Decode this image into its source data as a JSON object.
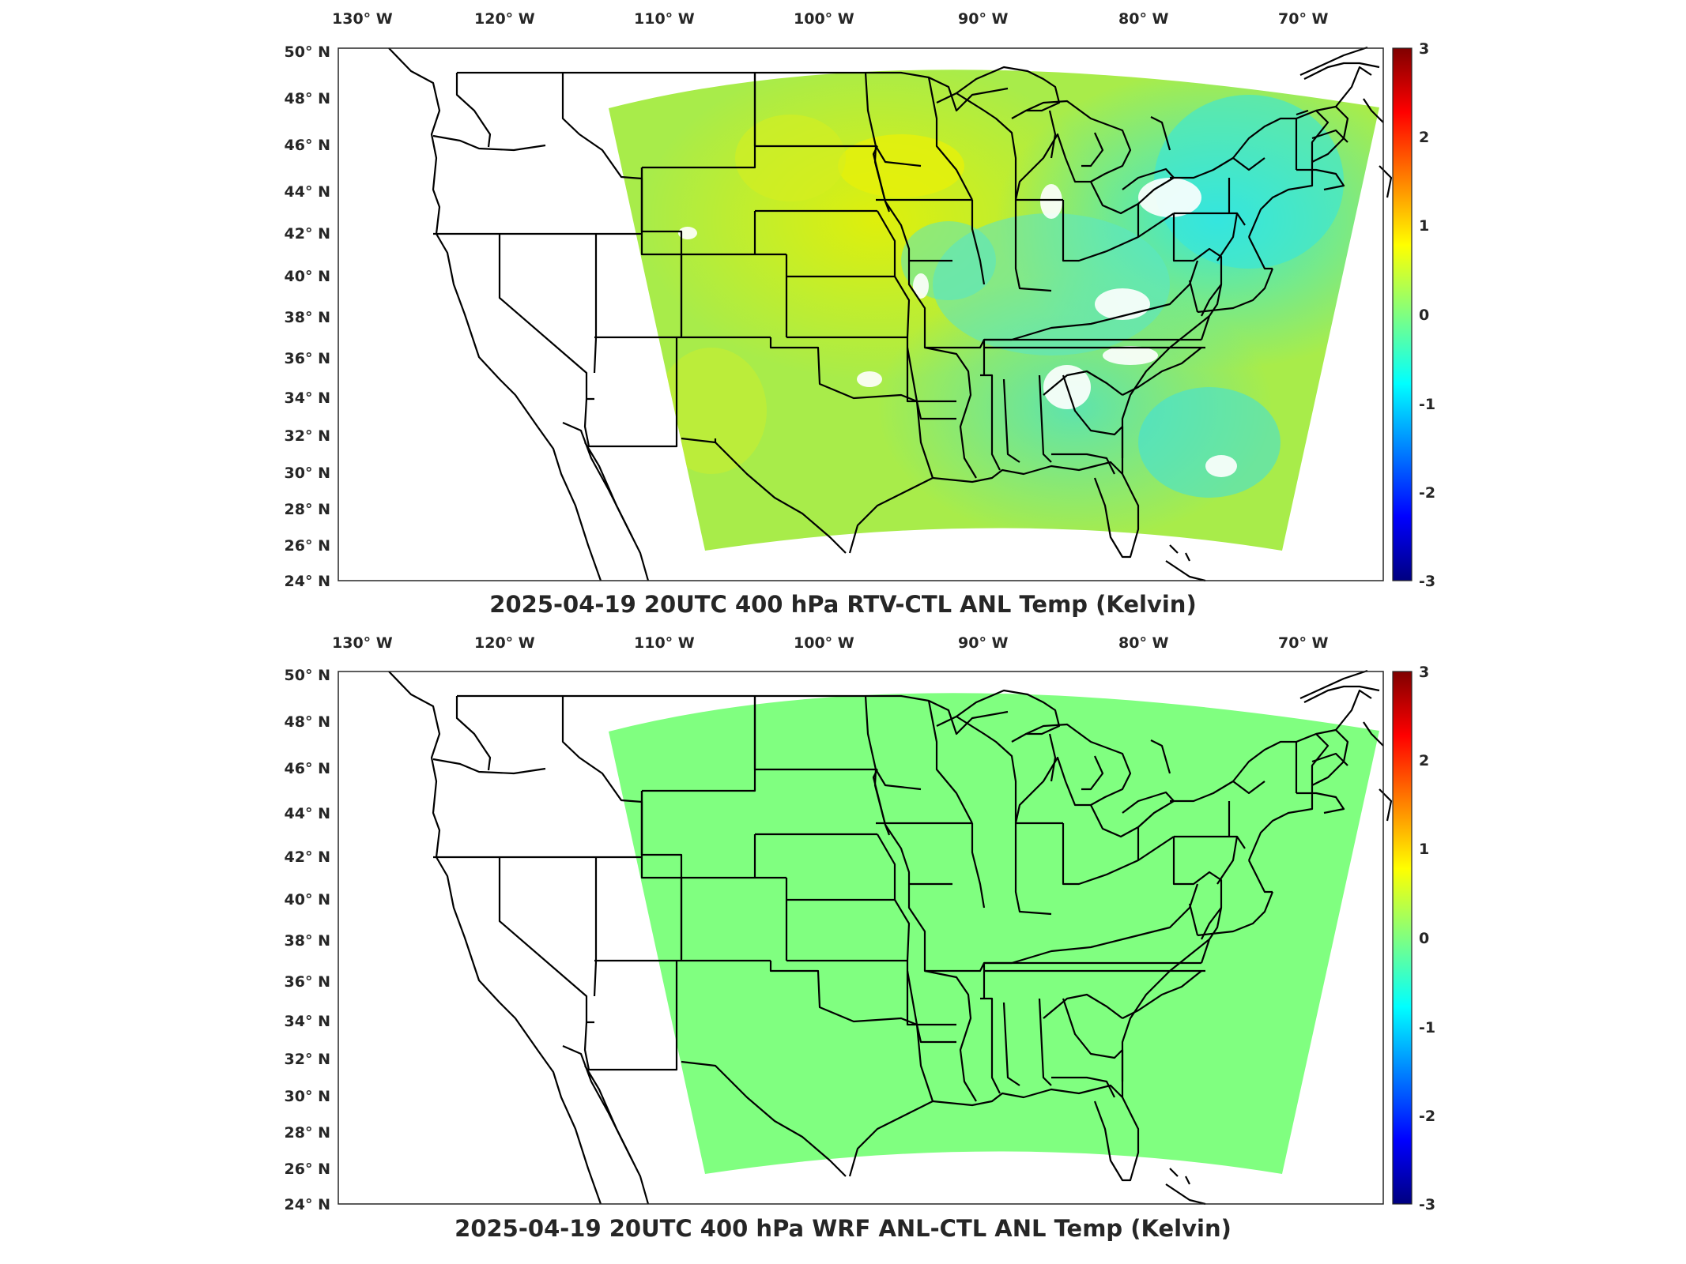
{
  "colors": {
    "positive_high": "#800000",
    "zero": "#80ff80",
    "negative_low": "#000080",
    "outline": "#000000"
  },
  "maps": [
    {
      "title": "2025-04-19 20UTC 400 hPa RTV-CTL ANL Temp (Kelvin)",
      "lon_ticks": [
        "130° W",
        "120° W",
        "110° W",
        "100° W",
        "90° W",
        "80° W",
        "70° W"
      ],
      "lat_ticks": [
        "50° N",
        "48° N",
        "46° N",
        "44° N",
        "42° N",
        "40° N",
        "38° N",
        "36° N",
        "34° N",
        "32° N",
        "30° N",
        "28° N",
        "26° N",
        "24° N"
      ],
      "colorbar": {
        "ticks": [
          "3",
          "2",
          "1",
          "0",
          "-1",
          "-2",
          "-3"
        ],
        "range": [
          -3,
          3
        ]
      },
      "field": "varied differences mostly near 0 with cyan (negative) regions in the east and yellow (positive) regions in the central plains"
    },
    {
      "title": "2025-04-19 20UTC 400 hPa WRF ANL-CTL ANL Temp (Kelvin)",
      "lon_ticks": [
        "130° W",
        "120° W",
        "110° W",
        "100° W",
        "90° W",
        "80° W",
        "70° W"
      ],
      "lat_ticks": [
        "50° N",
        "48° N",
        "46° N",
        "44° N",
        "42° N",
        "40° N",
        "38° N",
        "36° N",
        "34° N",
        "32° N",
        "30° N",
        "28° N",
        "26° N",
        "24° N"
      ],
      "colorbar": {
        "ticks": [
          "3",
          "2",
          "1",
          "0",
          "-1",
          "-2",
          "-3"
        ],
        "range": [
          -3,
          3
        ]
      },
      "field": "uniform zero difference"
    }
  ]
}
